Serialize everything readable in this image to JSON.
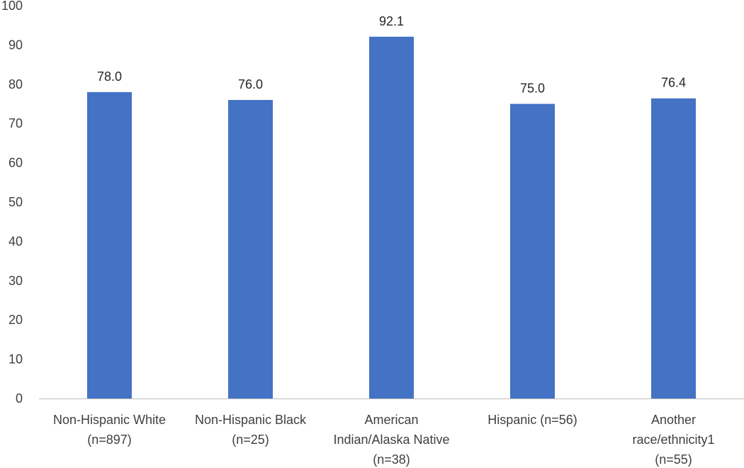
{
  "chart_data": {
    "type": "bar",
    "title": "",
    "xlabel": "",
    "ylabel": "",
    "ylim": [
      0,
      100
    ],
    "yticks": [
      0,
      10,
      20,
      30,
      40,
      50,
      60,
      70,
      80,
      90,
      100
    ],
    "grid": false,
    "legend": "none",
    "categories": [
      [
        "Non-Hispanic White",
        "(n=897)"
      ],
      [
        "Non-Hispanic Black",
        "(n=25)"
      ],
      [
        "American",
        "Indian/Alaska Native",
        "(n=38)"
      ],
      [
        "Hispanic (n=56)"
      ],
      [
        "Another",
        "race/ethnicity1",
        "(n=55)"
      ]
    ],
    "values": [
      78.0,
      76.0,
      92.1,
      75.0,
      76.4
    ],
    "data_labels": [
      "78.0",
      "76.0",
      "92.1",
      "75.0",
      "76.4"
    ],
    "colors": {
      "bar": "#4472C4",
      "axis": "#BFBFBF"
    }
  }
}
